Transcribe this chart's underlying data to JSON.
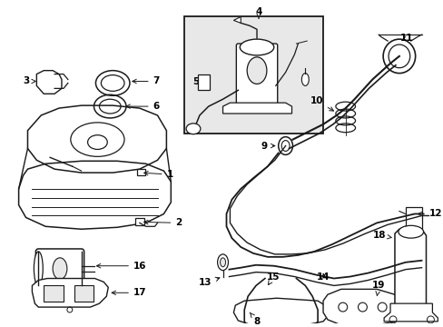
{
  "background_color": "#ffffff",
  "line_color": "#1a1a1a",
  "text_color": "#000000",
  "inset_bg": "#e8e8e8",
  "figsize": [
    4.89,
    3.6
  ],
  "dpi": 100
}
